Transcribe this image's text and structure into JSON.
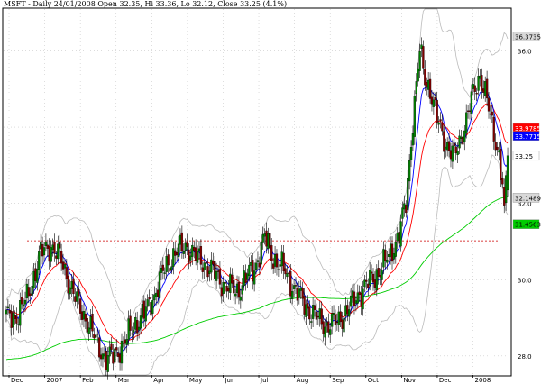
{
  "header": {
    "title": "MSFT - Daily 24/01/2008 Open 32.35, Hi 33.36, Lo 32.12, Close 33.25 (4.1%)"
  },
  "chart_data": {
    "type": "candlestick",
    "title": "MSFT - Daily 24/01/2008 Open 32.35, Hi 33.36, Lo 32.12, Close 33.25 (4.1%)",
    "ylim": [
      27.5,
      37.1
    ],
    "y_ticks": [
      28.0,
      30.0,
      32.0,
      34.0,
      36.0
    ],
    "x_tick_labels": [
      "Dec",
      "2007",
      "Feb",
      "Mar",
      "Apr",
      "May",
      "Jun",
      "Jul",
      "Aug",
      "Sep",
      "Oct",
      "Nov",
      "Dec",
      "2008"
    ],
    "grid": true,
    "colors": {
      "up": "#008000",
      "down": "#800000",
      "ma_fast": "#0000ff",
      "ma_mid": "#ff0000",
      "ma_slow": "#00cc00",
      "bands": "#bbbbbb",
      "reference": "#cc0000"
    },
    "reference_line": 31.02,
    "price_tags": [
      {
        "value": "36.3735",
        "bg": "#d8d8d8",
        "fg": "#000000"
      },
      {
        "value": "33.9785",
        "bg": "#ff0000",
        "fg": "#ffffff"
      },
      {
        "value": "33.7715",
        "bg": "#0000ff",
        "fg": "#ffffff"
      },
      {
        "value": "33.25",
        "bg": "#ffffff",
        "fg": "#000000"
      },
      {
        "value": "32.1489",
        "bg": "#d8d8d8",
        "fg": "#000000"
      },
      {
        "value": "31.4563",
        "bg": "#00cc00",
        "fg": "#000000"
      }
    ],
    "anchors": [
      [
        0,
        29.0
      ],
      [
        5,
        29.0
      ],
      [
        12,
        29.5
      ],
      [
        20,
        30.7
      ],
      [
        26,
        30.9
      ],
      [
        32,
        30.5
      ],
      [
        40,
        29.5
      ],
      [
        46,
        29.0
      ],
      [
        52,
        28.4
      ],
      [
        58,
        27.9
      ],
      [
        62,
        28.0
      ],
      [
        68,
        28.3
      ],
      [
        74,
        28.8
      ],
      [
        80,
        29.1
      ],
      [
        86,
        29.6
      ],
      [
        92,
        30.3
      ],
      [
        98,
        30.7
      ],
      [
        104,
        30.9
      ],
      [
        110,
        30.6
      ],
      [
        116,
        30.4
      ],
      [
        122,
        30.1
      ],
      [
        128,
        29.8
      ],
      [
        134,
        29.7
      ],
      [
        140,
        30.1
      ],
      [
        144,
        30.3
      ],
      [
        150,
        31.1
      ],
      [
        156,
        30.5
      ],
      [
        162,
        30.2
      ],
      [
        168,
        29.7
      ],
      [
        174,
        29.3
      ],
      [
        180,
        29.0
      ],
      [
        186,
        28.8
      ],
      [
        192,
        28.9
      ],
      [
        198,
        29.2
      ],
      [
        204,
        29.6
      ],
      [
        210,
        29.9
      ],
      [
        216,
        30.2
      ],
      [
        222,
        30.6
      ],
      [
        228,
        31.2
      ],
      [
        232,
        32.0
      ],
      [
        236,
        34.2
      ],
      [
        240,
        36.0
      ],
      [
        243,
        35.3
      ],
      [
        246,
        35.0
      ],
      [
        250,
        34.2
      ],
      [
        255,
        33.6
      ],
      [
        260,
        33.2
      ],
      [
        265,
        33.9
      ],
      [
        270,
        34.7
      ],
      [
        275,
        35.4
      ],
      [
        278,
        34.9
      ],
      [
        282,
        34.0
      ],
      [
        286,
        33.3
      ],
      [
        288,
        32.5
      ],
      [
        289,
        31.7
      ],
      [
        291,
        33.25
      ]
    ],
    "sample_count": 292
  }
}
